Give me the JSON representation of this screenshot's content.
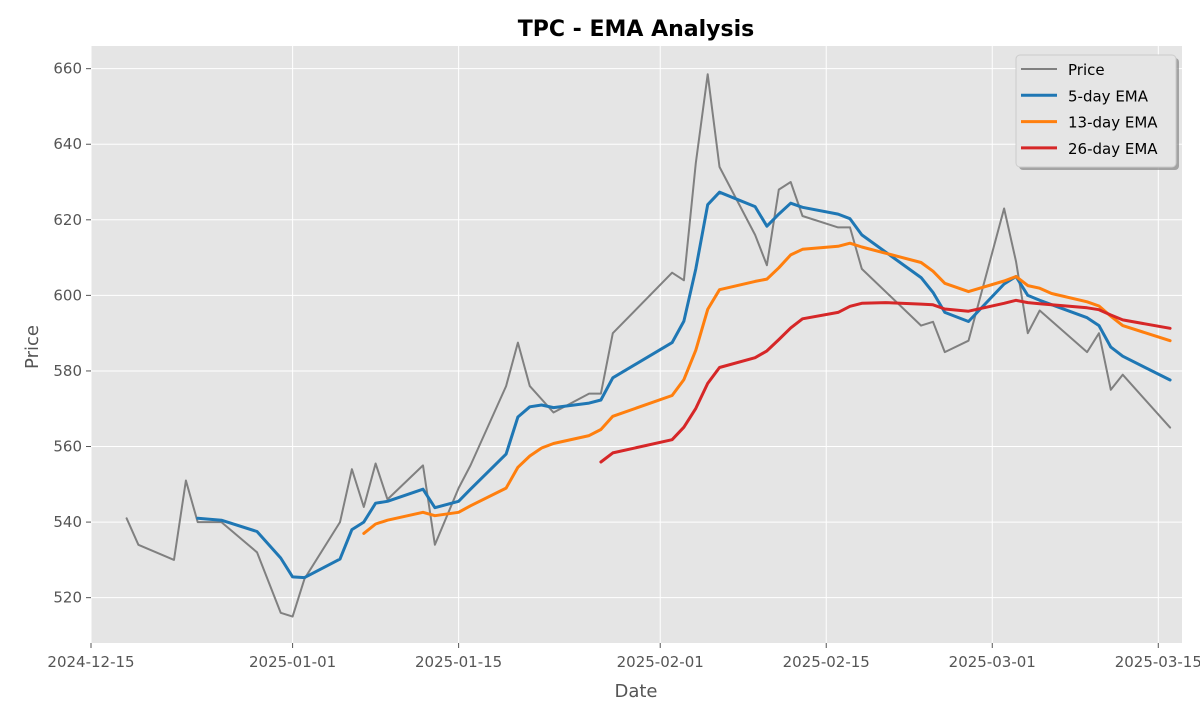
{
  "chart_data": {
    "type": "line",
    "title": "TPC - EMA Analysis",
    "xlabel": "Date",
    "ylabel": "Price",
    "x_type": "date",
    "xlim": [
      "2024-12-15",
      "2025-03-17"
    ],
    "ylim": [
      508,
      666
    ],
    "x_ticks": [
      "2024-12-15",
      "2025-01-01",
      "2025-01-15",
      "2025-02-01",
      "2025-02-15",
      "2025-03-01",
      "2025-03-15"
    ],
    "x_tick_labels": [
      "2024-12-15",
      "2025-01-01",
      "2025-01-15",
      "2025-02-01",
      "2025-02-15",
      "2025-03-01",
      "2025-03-15"
    ],
    "y_ticks": [
      520,
      540,
      560,
      580,
      600,
      620,
      640,
      660
    ],
    "y_tick_labels": [
      "520",
      "540",
      "560",
      "580",
      "600",
      "620",
      "640",
      "660"
    ],
    "grid": true,
    "legend_position": "top-right",
    "background": "#e5e5e5",
    "series": [
      {
        "name": "Price",
        "color": "#808080",
        "points": [
          [
            "2024-12-18",
            541
          ],
          [
            "2024-12-19",
            534
          ],
          [
            "2024-12-22",
            530
          ],
          [
            "2024-12-23",
            551
          ],
          [
            "2024-12-24",
            540
          ],
          [
            "2024-12-26",
            540
          ],
          [
            "2024-12-29",
            532
          ],
          [
            "2024-12-31",
            516
          ],
          [
            "2025-01-01",
            515
          ],
          [
            "2025-01-02",
            525
          ],
          [
            "2025-01-05",
            540
          ],
          [
            "2025-01-06",
            554
          ],
          [
            "2025-01-07",
            544
          ],
          [
            "2025-01-08",
            555.5
          ],
          [
            "2025-01-09",
            546
          ],
          [
            "2025-01-12",
            555
          ],
          [
            "2025-01-13",
            534
          ],
          [
            "2025-01-15",
            549
          ],
          [
            "2025-01-16",
            555
          ],
          [
            "2025-01-19",
            576
          ],
          [
            "2025-01-20",
            587.5
          ],
          [
            "2025-01-21",
            576
          ],
          [
            "2025-01-23",
            569
          ],
          [
            "2025-01-26",
            574
          ],
          [
            "2025-01-27",
            574
          ],
          [
            "2025-01-28",
            590
          ],
          [
            "2025-02-02",
            606
          ],
          [
            "2025-02-03",
            604
          ],
          [
            "2025-02-04",
            635
          ],
          [
            "2025-02-05",
            658.5
          ],
          [
            "2025-02-06",
            634
          ],
          [
            "2025-02-09",
            616
          ],
          [
            "2025-02-10",
            608
          ],
          [
            "2025-02-11",
            628
          ],
          [
            "2025-02-12",
            630
          ],
          [
            "2025-02-13",
            621
          ],
          [
            "2025-02-16",
            618
          ],
          [
            "2025-02-17",
            618
          ],
          [
            "2025-02-18",
            607
          ],
          [
            "2025-02-23",
            592
          ],
          [
            "2025-02-24",
            593
          ],
          [
            "2025-02-25",
            585
          ],
          [
            "2025-02-27",
            588
          ],
          [
            "2025-03-02",
            623
          ],
          [
            "2025-03-03",
            609
          ],
          [
            "2025-03-04",
            590
          ],
          [
            "2025-03-05",
            596
          ],
          [
            "2025-03-09",
            585
          ],
          [
            "2025-03-10",
            590
          ],
          [
            "2025-03-11",
            575
          ],
          [
            "2025-03-12",
            579
          ],
          [
            "2025-03-16",
            565
          ]
        ]
      },
      {
        "name": "5-day EMA",
        "color": "#1f77b4",
        "points": [
          [
            "2024-12-24",
            541
          ],
          [
            "2024-12-26",
            540.5
          ],
          [
            "2024-12-29",
            537.5
          ],
          [
            "2024-12-31",
            530.5
          ],
          [
            "2025-01-01",
            525.5
          ],
          [
            "2025-01-02",
            525.3
          ],
          [
            "2025-01-05",
            530.2
          ],
          [
            "2025-01-06",
            538
          ],
          [
            "2025-01-07",
            540
          ],
          [
            "2025-01-08",
            545
          ],
          [
            "2025-01-09",
            545.5
          ],
          [
            "2025-01-12",
            548.7
          ],
          [
            "2025-01-13",
            543.8
          ],
          [
            "2025-01-15",
            545.5
          ],
          [
            "2025-01-16",
            548.7
          ],
          [
            "2025-01-19",
            558
          ],
          [
            "2025-01-20",
            567.8
          ],
          [
            "2025-01-21",
            570.5
          ],
          [
            "2025-01-22",
            571
          ],
          [
            "2025-01-23",
            570.3
          ],
          [
            "2025-01-26",
            571.5
          ],
          [
            "2025-01-27",
            572.3
          ],
          [
            "2025-01-28",
            578.2
          ],
          [
            "2025-02-02",
            587.5
          ],
          [
            "2025-02-03",
            593.2
          ],
          [
            "2025-02-04",
            607
          ],
          [
            "2025-02-05",
            624
          ],
          [
            "2025-02-06",
            627.3
          ],
          [
            "2025-02-09",
            623.5
          ],
          [
            "2025-02-10",
            618.3
          ],
          [
            "2025-02-11",
            621.5
          ],
          [
            "2025-02-12",
            624.4
          ],
          [
            "2025-02-13",
            623.3
          ],
          [
            "2025-02-16",
            621.5
          ],
          [
            "2025-02-17",
            620.3
          ],
          [
            "2025-02-18",
            616
          ],
          [
            "2025-02-23",
            604.7
          ],
          [
            "2025-02-24",
            600.8
          ],
          [
            "2025-02-25",
            595.5
          ],
          [
            "2025-02-27",
            593.1
          ],
          [
            "2025-03-02",
            603
          ],
          [
            "2025-03-03",
            605
          ],
          [
            "2025-03-04",
            600
          ],
          [
            "2025-03-05",
            598.7
          ],
          [
            "2025-03-09",
            594.1
          ],
          [
            "2025-03-10",
            592
          ],
          [
            "2025-03-11",
            586.3
          ],
          [
            "2025-03-12",
            583.9
          ],
          [
            "2025-03-16",
            577.6
          ]
        ]
      },
      {
        "name": "13-day EMA",
        "color": "#ff7f0e",
        "points": [
          [
            "2025-01-07",
            537
          ],
          [
            "2025-01-08",
            539.5
          ],
          [
            "2025-01-09",
            540.5
          ],
          [
            "2025-01-12",
            542.6
          ],
          [
            "2025-01-13",
            541.7
          ],
          [
            "2025-01-15",
            542.6
          ],
          [
            "2025-01-16",
            544.3
          ],
          [
            "2025-01-19",
            549
          ],
          [
            "2025-01-20",
            554.5
          ],
          [
            "2025-01-21",
            557.5
          ],
          [
            "2025-01-22",
            559.6
          ],
          [
            "2025-01-23",
            560.8
          ],
          [
            "2025-01-26",
            562.9
          ],
          [
            "2025-01-27",
            564.5
          ],
          [
            "2025-01-28",
            568
          ],
          [
            "2025-02-02",
            573.5
          ],
          [
            "2025-02-03",
            577.7
          ],
          [
            "2025-02-04",
            585.5
          ],
          [
            "2025-02-05",
            596.3
          ],
          [
            "2025-02-06",
            601.5
          ],
          [
            "2025-02-09",
            603.7
          ],
          [
            "2025-02-10",
            604.3
          ],
          [
            "2025-02-11",
            607.3
          ],
          [
            "2025-02-12",
            610.7
          ],
          [
            "2025-02-13",
            612.2
          ],
          [
            "2025-02-16",
            613
          ],
          [
            "2025-02-17",
            613.8
          ],
          [
            "2025-02-18",
            612.8
          ],
          [
            "2025-02-23",
            608.7
          ],
          [
            "2025-02-24",
            606.4
          ],
          [
            "2025-02-25",
            603.2
          ],
          [
            "2025-02-27",
            601
          ],
          [
            "2025-03-02",
            603.8
          ],
          [
            "2025-03-03",
            605
          ],
          [
            "2025-03-04",
            602.6
          ],
          [
            "2025-03-05",
            601.9
          ],
          [
            "2025-03-06",
            600.5
          ],
          [
            "2025-03-09",
            598.3
          ],
          [
            "2025-03-10",
            597.2
          ],
          [
            "2025-03-11",
            594.5
          ],
          [
            "2025-03-12",
            592
          ],
          [
            "2025-03-16",
            588
          ]
        ]
      },
      {
        "name": "26-day EMA",
        "color": "#d62728",
        "points": [
          [
            "2025-01-27",
            555.9
          ],
          [
            "2025-01-28",
            558.3
          ],
          [
            "2025-02-02",
            561.8
          ],
          [
            "2025-02-03",
            565.1
          ],
          [
            "2025-02-04",
            570.1
          ],
          [
            "2025-02-05",
            576.7
          ],
          [
            "2025-02-06",
            580.9
          ],
          [
            "2025-02-09",
            583.5
          ],
          [
            "2025-02-10",
            585.3
          ],
          [
            "2025-02-11",
            588.3
          ],
          [
            "2025-02-12",
            591.4
          ],
          [
            "2025-02-13",
            593.8
          ],
          [
            "2025-02-16",
            595.5
          ],
          [
            "2025-02-17",
            597.1
          ],
          [
            "2025-02-18",
            597.9
          ],
          [
            "2025-02-20",
            598.1
          ],
          [
            "2025-02-23",
            597.7
          ],
          [
            "2025-02-24",
            597.5
          ],
          [
            "2025-02-25",
            596.4
          ],
          [
            "2025-02-27",
            595.8
          ],
          [
            "2025-03-02",
            597.9
          ],
          [
            "2025-03-03",
            598.7
          ],
          [
            "2025-03-04",
            598.1
          ],
          [
            "2025-03-05",
            597.8
          ],
          [
            "2025-03-09",
            596.7
          ],
          [
            "2025-03-10",
            596.2
          ],
          [
            "2025-03-11",
            594.8
          ],
          [
            "2025-03-12",
            593.5
          ],
          [
            "2025-03-16",
            591.3
          ]
        ]
      }
    ]
  }
}
